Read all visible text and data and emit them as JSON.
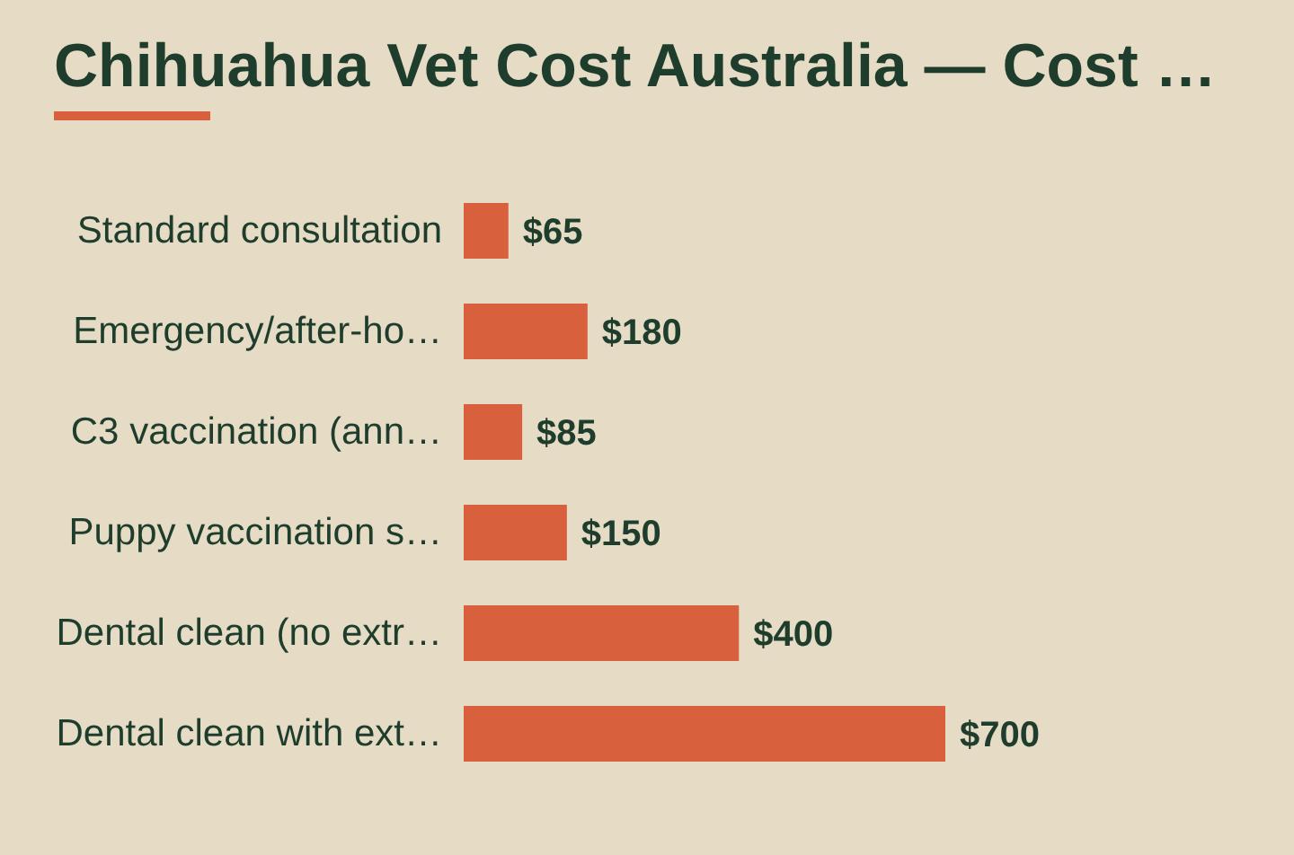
{
  "chart_data": {
    "type": "bar",
    "orientation": "horizontal",
    "title": "Chihuahua Vet Cost Australia — Cost …",
    "categories": [
      "Standard consultation",
      "Emergency/after-ho…",
      "C3 vaccination (ann…",
      "Puppy vaccination s…",
      "Dental clean (no extr…",
      "Dental clean with ext…"
    ],
    "values": [
      65,
      180,
      85,
      150,
      400,
      700
    ],
    "color": "#d9603c",
    "value_labels": [
      "$65",
      "$180",
      "$85",
      "$150",
      "$400",
      "$700"
    ]
  }
}
